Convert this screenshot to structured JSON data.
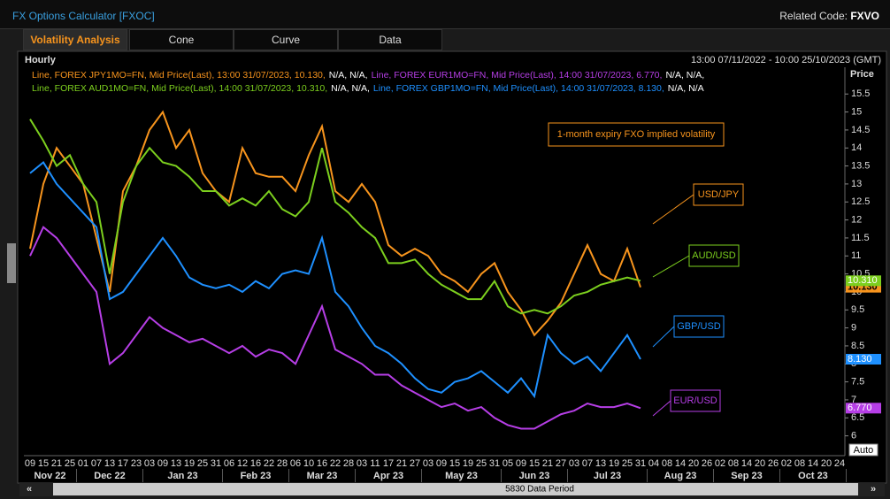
{
  "header": {
    "title": "FX Options Calculator [FXOC]",
    "related_label": "Related Code:",
    "related_code": "FXVO"
  },
  "tabs": [
    "Volatility Analysis",
    "Cone",
    "Curve",
    "Data"
  ],
  "panel": {
    "interval": "Hourly",
    "range": "13:00 07/11/2022 - 10:00 25/10/2023 (GMT)",
    "axis_label": "Price",
    "data_period": "5830 Data Period",
    "auto": "Auto"
  },
  "chart_data": {
    "type": "line",
    "annotation": "1-month expiry FXO implied volatility",
    "categories": [
      "09",
      "15",
      "21",
      "25",
      "01",
      "07",
      "13",
      "17",
      "23",
      "03",
      "09",
      "13",
      "19",
      "25",
      "31",
      "06",
      "12",
      "16",
      "22",
      "28",
      "06",
      "10",
      "16",
      "22",
      "28",
      "03",
      "11",
      "17",
      "21",
      "27",
      "03",
      "09",
      "15",
      "19",
      "25",
      "31",
      "05",
      "09",
      "15",
      "21",
      "27",
      "03",
      "07",
      "13",
      "19",
      "25",
      "31",
      "04",
      "08",
      "14",
      "20",
      "26",
      "02",
      "08",
      "14",
      "20",
      "26",
      "02",
      "08",
      "14",
      "20",
      "24"
    ],
    "months": [
      "Nov 22",
      "Dec 22",
      "Jan 23",
      "Feb 23",
      "Mar 23",
      "Apr 23",
      "May 23",
      "Jun 23",
      "Jul 23",
      "Aug 23",
      "Sep 23",
      "Oct 23"
    ],
    "ylim": [
      5.45,
      15.85
    ],
    "yticks": [
      6,
      6.5,
      7,
      7.5,
      8,
      8.5,
      9,
      9.5,
      10,
      10.5,
      11,
      11.5,
      12,
      12.5,
      13,
      13.5,
      14,
      14.5,
      15,
      15.5
    ],
    "grid": false,
    "series": [
      {
        "name": "USD/JPY",
        "color": "#f7941d",
        "legend": "Line, FOREX JPY1MO=FN, Mid Price(Last),  13:00 31/07/2023, 10.130,",
        "legend_extra": "N/A, N/A,",
        "last_label": "10.130",
        "values": [
          11.2,
          13.0,
          14.0,
          13.5,
          13.0,
          11.5,
          10.0,
          12.8,
          13.5,
          14.5,
          15.0,
          14.0,
          14.5,
          13.3,
          12.8,
          12.5,
          14.0,
          13.3,
          13.2,
          13.2,
          12.8,
          13.8,
          14.6,
          12.8,
          12.5,
          13.0,
          12.5,
          11.3,
          11.0,
          11.2,
          11.0,
          10.5,
          10.3,
          10.0,
          10.5,
          10.8,
          10.0,
          9.5,
          8.8,
          9.2,
          9.7,
          10.5,
          11.3,
          10.5,
          10.3,
          11.2,
          10.13,
          null,
          null,
          null,
          null,
          null,
          null,
          null,
          null,
          null,
          null,
          null,
          null,
          null,
          null,
          null
        ]
      },
      {
        "name": "EUR/USD",
        "color": "#b63ee6",
        "legend": "Line, FOREX EUR1MO=FN, Mid Price(Last),  14:00 31/07/2023, 6.770,",
        "legend_extra": "N/A, N/A,",
        "last_label": "6.770",
        "values": [
          11.0,
          11.8,
          11.5,
          11.0,
          10.5,
          10.0,
          8.0,
          8.3,
          8.8,
          9.3,
          9.0,
          8.8,
          8.6,
          8.7,
          8.5,
          8.3,
          8.5,
          8.2,
          8.4,
          8.3,
          8.0,
          8.8,
          9.6,
          8.4,
          8.2,
          8.0,
          7.7,
          7.7,
          7.4,
          7.2,
          7.0,
          6.8,
          6.9,
          6.7,
          6.8,
          6.5,
          6.3,
          6.2,
          6.2,
          6.4,
          6.6,
          6.7,
          6.9,
          6.8,
          6.8,
          6.9,
          6.77,
          null,
          null,
          null,
          null,
          null,
          null,
          null,
          null,
          null,
          null,
          null,
          null,
          null,
          null,
          null
        ]
      },
      {
        "name": "AUD/USD",
        "color": "#7ccf1e",
        "legend": "Line, FOREX AUD1MO=FN, Mid Price(Last),  14:00 31/07/2023, 10.310,",
        "legend_extra": "N/A, N/A,",
        "last_label": "10.310",
        "values": [
          14.8,
          14.2,
          13.5,
          13.8,
          13.0,
          12.5,
          10.5,
          12.5,
          13.5,
          14.0,
          13.6,
          13.5,
          13.2,
          12.8,
          12.8,
          12.4,
          12.6,
          12.4,
          12.8,
          12.3,
          12.1,
          12.5,
          14.0,
          12.5,
          12.2,
          11.8,
          11.5,
          10.8,
          10.8,
          10.9,
          10.5,
          10.2,
          10.0,
          9.8,
          9.8,
          10.3,
          9.6,
          9.4,
          9.5,
          9.4,
          9.6,
          9.9,
          10.0,
          10.2,
          10.3,
          10.4,
          10.31,
          null,
          null,
          null,
          null,
          null,
          null,
          null,
          null,
          null,
          null,
          null,
          null,
          null,
          null,
          null
        ]
      },
      {
        "name": "GBP/USD",
        "color": "#1e90ff",
        "legend": "Line, FOREX GBP1MO=FN, Mid Price(Last),  14:00 31/07/2023, 8.130,",
        "legend_extra": "N/A, N/A",
        "last_label": "8.130",
        "values": [
          13.3,
          13.6,
          13.0,
          12.6,
          12.2,
          11.8,
          9.8,
          10.0,
          10.5,
          11.0,
          11.5,
          11.0,
          10.4,
          10.2,
          10.1,
          10.2,
          10.0,
          10.3,
          10.1,
          10.5,
          10.6,
          10.5,
          11.5,
          10.0,
          9.6,
          9.0,
          8.5,
          8.3,
          8.0,
          7.6,
          7.3,
          7.2,
          7.5,
          7.6,
          7.8,
          7.5,
          7.2,
          7.6,
          7.1,
          8.8,
          8.3,
          8.0,
          8.2,
          7.8,
          8.3,
          8.8,
          8.13,
          null,
          null,
          null,
          null,
          null,
          null,
          null,
          null,
          null,
          null,
          null,
          null,
          null,
          null,
          null
        ]
      }
    ]
  }
}
